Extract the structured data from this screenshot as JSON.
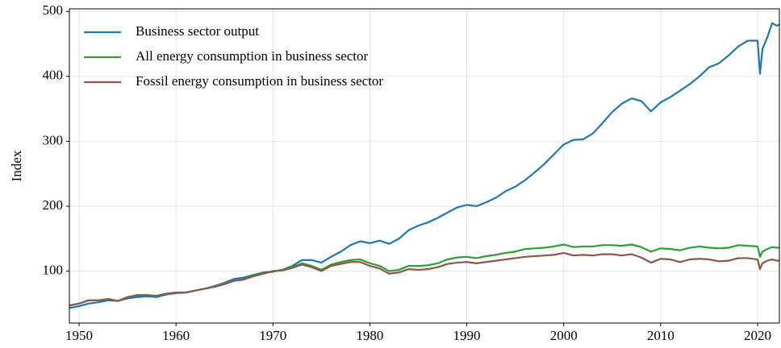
{
  "chart_data": {
    "type": "line",
    "y_label": "Index",
    "x": [
      1949,
      1950,
      1951,
      1952,
      1953,
      1954,
      1955,
      1956,
      1957,
      1958,
      1959,
      1960,
      1961,
      1962,
      1963,
      1964,
      1965,
      1966,
      1967,
      1968,
      1969,
      1970,
      1971,
      1972,
      1973,
      1974,
      1975,
      1976,
      1977,
      1978,
      1979,
      1980,
      1981,
      1982,
      1983,
      1984,
      1985,
      1986,
      1987,
      1988,
      1989,
      1990,
      1991,
      1992,
      1993,
      1994,
      1995,
      1996,
      1997,
      1998,
      1999,
      2000,
      2001,
      2002,
      2003,
      2004,
      2005,
      2006,
      2007,
      2008,
      2009,
      2010,
      2011,
      2012,
      2013,
      2014,
      2015,
      2016,
      2017,
      2018,
      2019,
      2020,
      2020.25,
      2020.5,
      2021,
      2021.5,
      2022,
      2022.25
    ],
    "series": [
      {
        "name": "Business sector output",
        "color": "#1f77b4",
        "values": [
          43,
          46,
          50,
          52,
          55,
          54,
          58,
          60,
          61,
          60,
          64,
          66,
          67,
          70,
          73,
          77,
          82,
          88,
          90,
          94,
          98,
          99,
          102,
          108,
          117,
          117,
          113,
          122,
          130,
          140,
          146,
          143,
          147,
          142,
          150,
          163,
          170,
          175,
          182,
          190,
          198,
          202,
          200,
          206,
          213,
          223,
          230,
          240,
          252,
          265,
          280,
          295,
          302,
          303,
          312,
          328,
          345,
          358,
          366,
          362,
          346,
          360,
          368,
          378,
          388,
          400,
          414,
          420,
          432,
          446,
          455,
          455,
          404,
          442,
          460,
          482,
          478,
          480
        ]
      },
      {
        "name": "All energy consumption in business sector",
        "color": "#2ca02c",
        "values": [
          47,
          50,
          55,
          55,
          57,
          54,
          60,
          63,
          63,
          62,
          65,
          67,
          67,
          70,
          73,
          76,
          80,
          85,
          88,
          93,
          97,
          100,
          102,
          106,
          112,
          108,
          102,
          110,
          114,
          117,
          118,
          112,
          108,
          100,
          102,
          108,
          108,
          109,
          112,
          118,
          121,
          122,
          120,
          123,
          125,
          128,
          130,
          134,
          135,
          136,
          138,
          141,
          137,
          138,
          138,
          140,
          140,
          139,
          141,
          137,
          130,
          135,
          134,
          132,
          136,
          138,
          136,
          135,
          136,
          140,
          139,
          138,
          122,
          130,
          134,
          137,
          136,
          136
        ]
      },
      {
        "name": "Fossil energy consumption in business sector",
        "color": "#8c564b",
        "values": [
          47,
          50,
          55,
          55,
          57,
          54,
          60,
          63,
          63,
          62,
          65,
          67,
          67,
          70,
          73,
          76,
          80,
          85,
          87,
          92,
          96,
          100,
          101,
          105,
          110,
          106,
          100,
          108,
          111,
          114,
          114,
          108,
          104,
          96,
          98,
          103,
          102,
          103,
          106,
          111,
          113,
          114,
          112,
          114,
          116,
          118,
          120,
          122,
          123,
          124,
          125,
          128,
          124,
          125,
          124,
          126,
          126,
          124,
          126,
          121,
          113,
          119,
          118,
          114,
          118,
          119,
          118,
          115,
          116,
          120,
          120,
          118,
          103,
          112,
          116,
          118,
          116,
          116
        ]
      }
    ],
    "xlim": [
      1949,
      2022.25
    ],
    "ylim": [
      20,
      504
    ],
    "xticks": [
      1950,
      1960,
      1970,
      1980,
      1990,
      2000,
      2010,
      2020
    ],
    "yticks": [
      100,
      200,
      300,
      400,
      500
    ],
    "grid": true,
    "legend": "upper left"
  }
}
